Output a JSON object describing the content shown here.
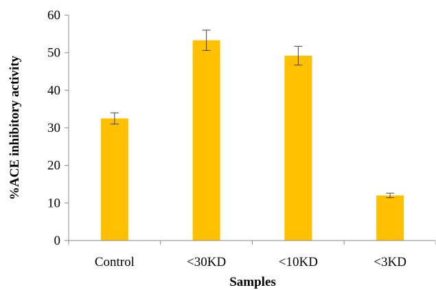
{
  "chart_data": {
    "type": "bar",
    "categories": [
      "Control",
      "<30KD",
      "<10KD",
      "<3KD"
    ],
    "values": [
      32.5,
      53.3,
      49.2,
      12.0
    ],
    "errors": [
      1.5,
      2.7,
      2.5,
      0.6
    ],
    "xlabel": "Samples",
    "ylabel": "%ACE inhibitory activity",
    "ylim": [
      0,
      60
    ],
    "yticks": [
      0,
      10,
      20,
      30,
      40,
      50,
      60
    ],
    "grid": false,
    "legend": "none",
    "bar_color": "#FFC000",
    "axis_color": "#888888",
    "error_color": "#404040"
  }
}
